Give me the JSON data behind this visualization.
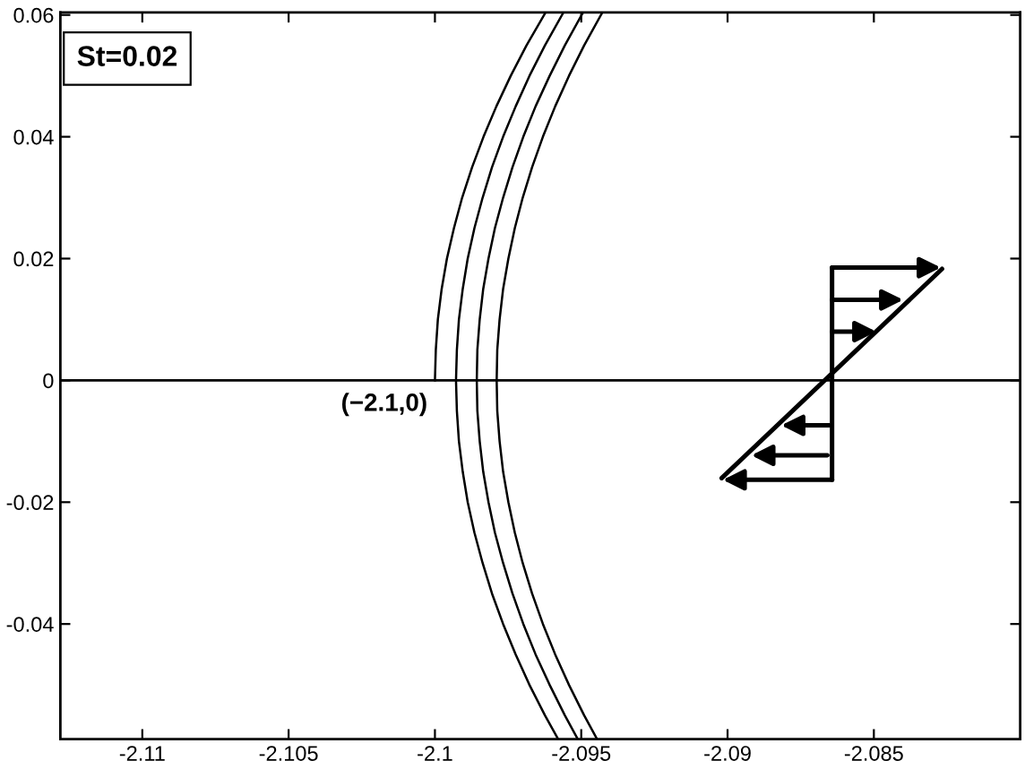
{
  "chart_data": {
    "type": "line",
    "series": [
      {
        "color": "#000000",
        "x": [
          -2.09622,
          -2.09687,
          -2.09741,
          -2.0979,
          -2.09834,
          -2.09873,
          -2.09907,
          -2.09935,
          -2.09959,
          -2.09977,
          -2.0999,
          -2.09997,
          -2.1
        ],
        "values": [
          0.0604,
          0.055,
          0.05,
          0.045,
          0.04,
          0.035,
          0.03,
          0.025,
          0.02,
          0.015,
          0.01,
          0.005,
          0
        ]
      },
      {
        "color": "#000000",
        "x": [
          -2.09561,
          -2.09624,
          -2.09677,
          -2.09724,
          -2.09767,
          -2.09805,
          -2.09837,
          -2.09865,
          -2.09888,
          -2.09905,
          -2.09918,
          -2.09925,
          -2.09928,
          -2.09925,
          -2.09918,
          -2.09905,
          -2.09888,
          -2.09865,
          -2.09837,
          -2.09805,
          -2.09767,
          -2.09724,
          -2.09677,
          -2.09624,
          -2.09579
        ],
        "values": [
          0.0604,
          0.055,
          0.05,
          0.045,
          0.04,
          0.035,
          0.03,
          0.025,
          0.02,
          0.015,
          0.01,
          0.005,
          0,
          -0.005,
          -0.01,
          -0.015,
          -0.02,
          -0.025,
          -0.03,
          -0.035,
          -0.04,
          -0.045,
          -0.05,
          -0.055,
          -0.0589
        ]
      },
      {
        "color": "#000000",
        "x": [
          -2.09494,
          -2.09556,
          -2.09608,
          -2.09656,
          -2.09698,
          -2.09735,
          -2.09767,
          -2.09795,
          -2.09817,
          -2.09835,
          -2.09847,
          -2.09855,
          -2.09857,
          -2.09855,
          -2.09847,
          -2.09835,
          -2.09817,
          -2.09795,
          -2.09767,
          -2.09735,
          -2.09698,
          -2.09656,
          -2.09608,
          -2.09556,
          -2.09512
        ],
        "values": [
          0.0604,
          0.055,
          0.05,
          0.045,
          0.04,
          0.035,
          0.03,
          0.025,
          0.02,
          0.015,
          0.01,
          0.005,
          0,
          -0.005,
          -0.01,
          -0.015,
          -0.02,
          -0.025,
          -0.03,
          -0.035,
          -0.04,
          -0.045,
          -0.05,
          -0.055,
          -0.0589
        ]
      },
      {
        "color": "#000000",
        "x": [
          -2.09428,
          -2.0949,
          -2.09542,
          -2.09589,
          -2.09631,
          -2.09668,
          -2.097,
          -2.09727,
          -2.09749,
          -2.09767,
          -2.09779,
          -2.09787,
          -2.09789,
          -2.09787,
          -2.09779,
          -2.09767,
          -2.09749,
          -2.09727,
          -2.097,
          -2.09668,
          -2.09631,
          -2.09589,
          -2.09542,
          -2.0949,
          -2.09446
        ],
        "values": [
          0.0604,
          0.055,
          0.05,
          0.045,
          0.04,
          0.035,
          0.03,
          0.025,
          0.02,
          0.015,
          0.01,
          0.005,
          0,
          -0.005,
          -0.01,
          -0.015,
          -0.02,
          -0.025,
          -0.03,
          -0.035,
          -0.04,
          -0.045,
          -0.05,
          -0.055,
          -0.0589
        ]
      }
    ],
    "xlim": [
      -2.1128,
      -2.08
    ],
    "ylim": [
      -0.0589,
      0.0604
    ],
    "xticks": [
      -2.11,
      -2.105,
      -2.1,
      -2.095,
      -2.09,
      -2.085
    ],
    "yticks": [
      -0.04,
      -0.02,
      0,
      0.02,
      0.04,
      0.06
    ],
    "ref_lines": [
      {
        "axis": "y",
        "value": 0,
        "color": "#000000"
      }
    ],
    "annotations": [
      "St=0.02",
      {
        "text": "(−2.1,0)",
        "x": -2.1,
        "y": 0
      }
    ]
  }
}
